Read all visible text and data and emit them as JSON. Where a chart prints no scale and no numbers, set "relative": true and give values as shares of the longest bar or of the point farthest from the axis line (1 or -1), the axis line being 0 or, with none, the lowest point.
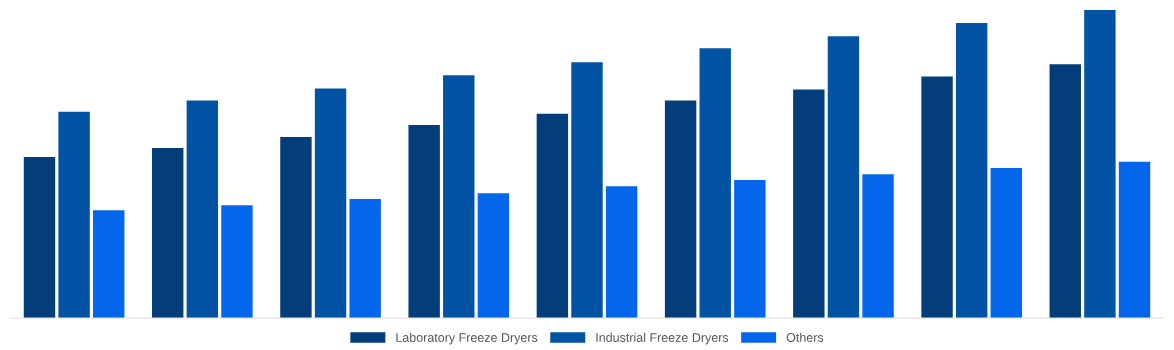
{
  "chart_data": {
    "type": "bar",
    "relative": true,
    "categories": [
      null,
      null,
      null,
      null,
      null,
      null,
      null,
      null,
      null
    ],
    "series": [
      {
        "name": "Laboratory Freeze Dryers",
        "color": "#033d7a",
        "values": [
          0.523,
          0.552,
          0.588,
          0.627,
          0.663,
          0.706,
          0.742,
          0.784,
          0.824
        ]
      },
      {
        "name": "Industrial Freeze Dryers",
        "color": "#0353a4",
        "values": [
          0.67,
          0.706,
          0.745,
          0.788,
          0.83,
          0.876,
          0.915,
          0.958,
          1
        ]
      },
      {
        "name": "Others",
        "color": "#0466eb",
        "values": [
          0.35,
          0.366,
          0.386,
          0.405,
          0.428,
          0.448,
          0.467,
          0.487,
          0.507
        ]
      }
    ],
    "grid": false,
    "legend": "bottom"
  }
}
